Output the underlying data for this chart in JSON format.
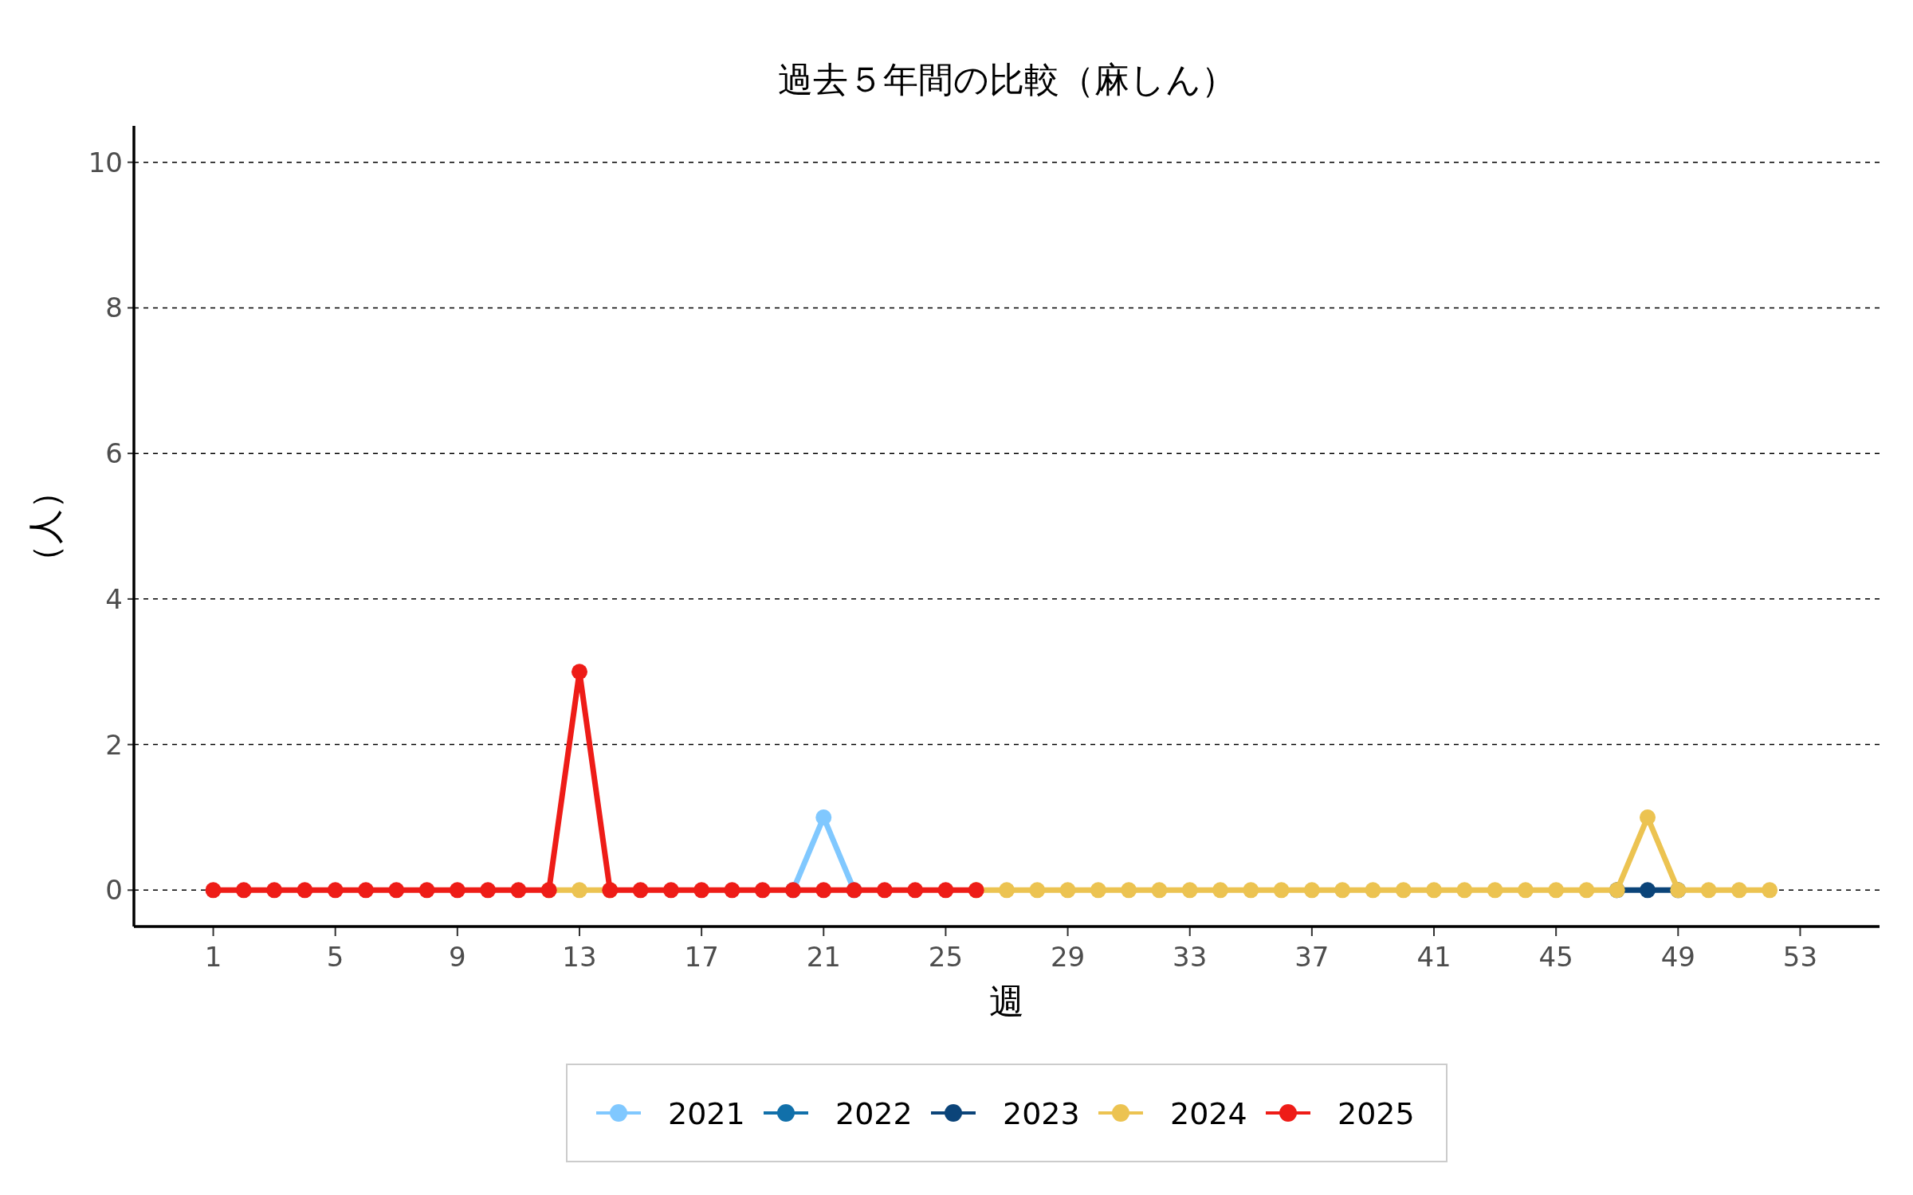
{
  "chart_data": {
    "type": "line",
    "title": "過去５年間の比較（麻しん）",
    "xlabel": "週",
    "ylabel": "（人）",
    "xlim": [
      -1.6,
      55.6
    ],
    "ylim": [
      -0.5,
      10.5
    ],
    "xticks": [
      1,
      5,
      9,
      13,
      17,
      21,
      25,
      29,
      33,
      37,
      41,
      45,
      49,
      53
    ],
    "yticks": [
      0,
      2,
      4,
      6,
      8,
      10
    ],
    "grid": "y",
    "legend": "bottom",
    "marker": "circle",
    "line_style": "solid",
    "x": [
      1,
      2,
      3,
      4,
      5,
      6,
      7,
      8,
      9,
      10,
      11,
      12,
      13,
      14,
      15,
      16,
      17,
      18,
      19,
      20,
      21,
      22,
      23,
      24,
      25,
      26,
      27,
      28,
      29,
      30,
      31,
      32,
      33,
      34,
      35,
      36,
      37,
      38,
      39,
      40,
      41,
      42,
      43,
      44,
      45,
      46,
      47,
      48,
      49,
      50,
      51,
      52
    ],
    "series": [
      {
        "name": "2021",
        "color": "#80c8ff",
        "values": [
          null,
          null,
          null,
          null,
          null,
          null,
          null,
          null,
          null,
          null,
          null,
          null,
          null,
          null,
          null,
          null,
          null,
          null,
          null,
          0,
          1,
          0,
          null,
          null,
          null,
          null,
          null,
          null,
          null,
          null,
          null,
          null,
          null,
          null,
          null,
          null,
          null,
          null,
          null,
          null,
          null,
          null,
          null,
          null,
          null,
          null,
          null,
          null,
          null,
          null,
          null,
          null
        ]
      },
      {
        "name": "2022",
        "color": "#1170aa",
        "values": [
          null,
          null,
          null,
          null,
          null,
          null,
          null,
          null,
          null,
          null,
          null,
          null,
          null,
          null,
          null,
          null,
          null,
          null,
          null,
          null,
          null,
          null,
          null,
          null,
          null,
          null,
          null,
          null,
          null,
          null,
          null,
          null,
          null,
          null,
          null,
          null,
          null,
          null,
          null,
          null,
          null,
          null,
          null,
          null,
          null,
          null,
          null,
          null,
          null,
          null,
          null,
          null
        ]
      },
      {
        "name": "2023",
        "color": "#0b4479",
        "values": [
          null,
          null,
          null,
          null,
          null,
          null,
          null,
          null,
          null,
          null,
          null,
          null,
          null,
          null,
          null,
          null,
          null,
          null,
          null,
          null,
          null,
          null,
          null,
          null,
          null,
          null,
          null,
          null,
          null,
          null,
          null,
          null,
          null,
          null,
          null,
          null,
          null,
          null,
          null,
          null,
          null,
          null,
          null,
          null,
          null,
          null,
          0,
          0,
          0,
          null,
          null,
          null
        ]
      },
      {
        "name": "2024",
        "color": "#ecc351",
        "values": [
          null,
          null,
          null,
          null,
          null,
          null,
          null,
          null,
          null,
          null,
          null,
          0,
          0,
          0,
          null,
          null,
          null,
          null,
          null,
          null,
          null,
          null,
          null,
          null,
          null,
          0,
          0,
          0,
          0,
          0,
          0,
          0,
          0,
          0,
          0,
          0,
          0,
          0,
          0,
          0,
          0,
          0,
          0,
          0,
          0,
          0,
          0,
          1,
          0,
          0,
          0,
          0
        ]
      },
      {
        "name": "2025",
        "color": "#ee1c17",
        "values": [
          0,
          0,
          0,
          0,
          0,
          0,
          0,
          0,
          0,
          0,
          0,
          0,
          3,
          0,
          0,
          0,
          0,
          0,
          0,
          0,
          0,
          0,
          0,
          0,
          0,
          0,
          null,
          null,
          null,
          null,
          null,
          null,
          null,
          null,
          null,
          null,
          null,
          null,
          null,
          null,
          null,
          null,
          null,
          null,
          null,
          null,
          null,
          null,
          null,
          null,
          null,
          null
        ]
      }
    ]
  }
}
